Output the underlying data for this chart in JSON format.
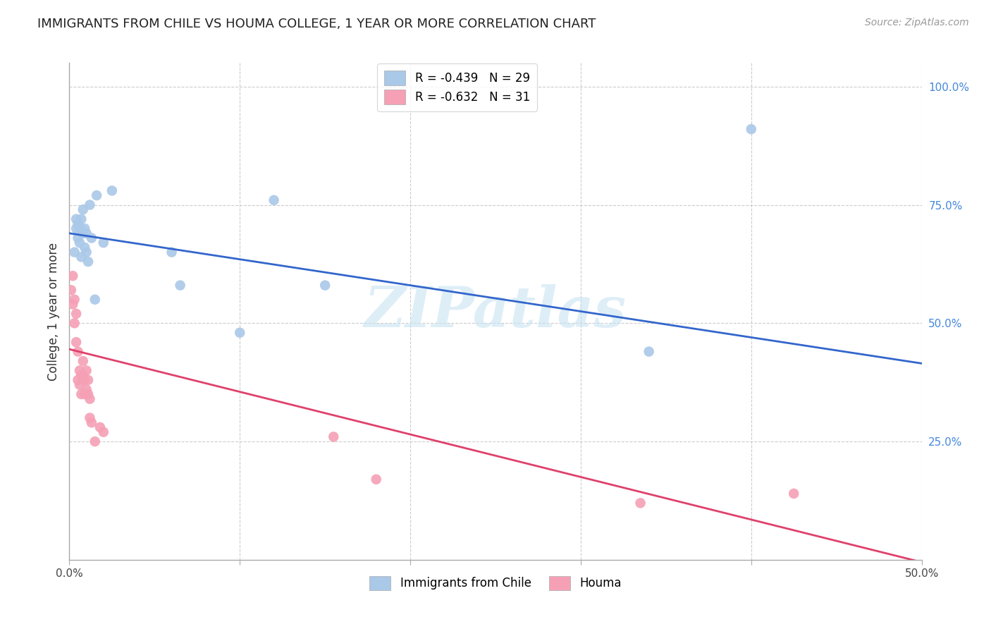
{
  "title": "IMMIGRANTS FROM CHILE VS HOUMA COLLEGE, 1 YEAR OR MORE CORRELATION CHART",
  "source": "Source: ZipAtlas.com",
  "ylabel": "College, 1 year or more",
  "xlim": [
    0.0,
    0.5
  ],
  "ylim": [
    0.0,
    1.05
  ],
  "xtick_labels": [
    "0.0%",
    "",
    "",
    "",
    "",
    "50.0%"
  ],
  "xtick_vals": [
    0.0,
    0.1,
    0.2,
    0.3,
    0.4,
    0.5
  ],
  "ytick_labels": [
    "25.0%",
    "50.0%",
    "75.0%",
    "100.0%"
  ],
  "ytick_vals": [
    0.25,
    0.5,
    0.75,
    1.0
  ],
  "legend_blue_r": "R = -0.439",
  "legend_blue_n": "N = 29",
  "legend_pink_r": "R = -0.632",
  "legend_pink_n": "N = 31",
  "legend_blue_label": "Immigrants from Chile",
  "legend_pink_label": "Houma",
  "blue_scatter_color": "#aac8e8",
  "pink_scatter_color": "#f5a0b5",
  "blue_line_color": "#3366cc",
  "pink_line_color": "#e0406a",
  "watermark_text": "ZIPatlas",
  "blue_scatter_x": [
    0.003,
    0.004,
    0.004,
    0.005,
    0.005,
    0.006,
    0.006,
    0.007,
    0.007,
    0.008,
    0.008,
    0.009,
    0.009,
    0.01,
    0.01,
    0.011,
    0.012,
    0.013,
    0.015,
    0.016,
    0.02,
    0.025,
    0.06,
    0.065,
    0.1,
    0.12,
    0.15,
    0.34,
    0.4
  ],
  "blue_scatter_y": [
    0.65,
    0.7,
    0.72,
    0.68,
    0.71,
    0.67,
    0.7,
    0.64,
    0.72,
    0.69,
    0.74,
    0.66,
    0.7,
    0.65,
    0.69,
    0.63,
    0.75,
    0.68,
    0.55,
    0.77,
    0.67,
    0.78,
    0.65,
    0.58,
    0.48,
    0.76,
    0.58,
    0.44,
    0.91
  ],
  "pink_scatter_x": [
    0.001,
    0.002,
    0.002,
    0.003,
    0.003,
    0.004,
    0.004,
    0.005,
    0.005,
    0.006,
    0.006,
    0.007,
    0.007,
    0.008,
    0.008,
    0.009,
    0.009,
    0.01,
    0.01,
    0.011,
    0.011,
    0.012,
    0.012,
    0.013,
    0.015,
    0.018,
    0.02,
    0.155,
    0.18,
    0.335,
    0.425
  ],
  "pink_scatter_y": [
    0.57,
    0.54,
    0.6,
    0.5,
    0.55,
    0.46,
    0.52,
    0.38,
    0.44,
    0.37,
    0.4,
    0.35,
    0.39,
    0.39,
    0.42,
    0.35,
    0.38,
    0.36,
    0.4,
    0.35,
    0.38,
    0.3,
    0.34,
    0.29,
    0.25,
    0.28,
    0.27,
    0.26,
    0.17,
    0.12,
    0.14
  ],
  "blue_line_x0": 0.0,
  "blue_line_x1": 0.5,
  "blue_line_y0": 0.69,
  "blue_line_y1": 0.415,
  "pink_line_x0": 0.0,
  "pink_line_x1": 0.5,
  "pink_line_y0": 0.445,
  "pink_line_y1": -0.005,
  "background_color": "#ffffff",
  "grid_color": "#cccccc",
  "grid_linestyle": "--",
  "ytick_color": "#4488dd",
  "xtick_color": "#444444",
  "spine_color": "#aaaaaa"
}
